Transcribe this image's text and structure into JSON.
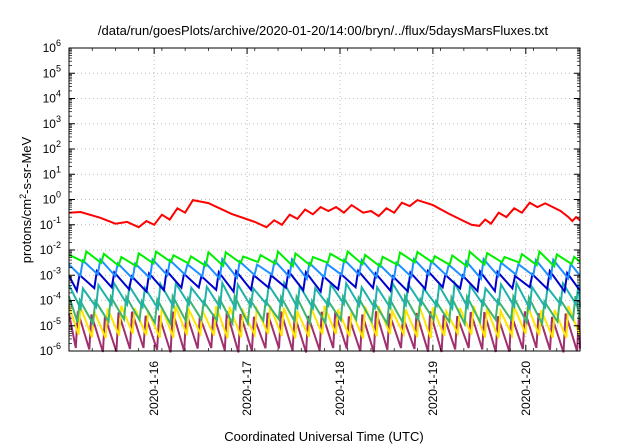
{
  "chart_data": {
    "type": "line",
    "title": "/data/run/goesPlots/archive/2020-01-20/14:00/bryn/../flux/5daysMarsFluxes.txt",
    "xlabel": "Coordinated Universal Time (UTC)",
    "ylabel": "protons/cm²-s-sr-MeV",
    "ylabel_parts": {
      "main": "protons/cm",
      "sup": "2",
      "tail": "-s-sr-MeV"
    },
    "y_scale": "log",
    "ylim": [
      1e-06,
      1000000.0
    ],
    "y_tick_exponents": [
      -6,
      -5,
      -4,
      -3,
      -2,
      -1,
      0,
      1,
      2,
      3,
      4,
      5,
      6
    ],
    "y_tick_base": "10",
    "xlim": [
      "2020-01-15 02:00",
      "2020-01-20 14:00"
    ],
    "x_ticks": [
      {
        "label": "2020-1-16",
        "date": "2020-01-16"
      },
      {
        "label": "2020-1-17",
        "date": "2020-01-17"
      },
      {
        "label": "2020-1-18",
        "date": "2020-01-18"
      },
      {
        "label": "2020-1-19",
        "date": "2020-01-19"
      },
      {
        "label": "2020-1-20",
        "date": "2020-01-20"
      }
    ],
    "grid": true,
    "legend": "none",
    "series": [
      {
        "color": "#ff0000",
        "points": [
          [
            "2020-01-15 02:00",
            0.3
          ],
          [
            "2020-01-15 05:00",
            0.32
          ],
          [
            "2020-01-15 10:00",
            0.19
          ],
          [
            "2020-01-15 14:00",
            0.11
          ],
          [
            "2020-01-15 17:00",
            0.13
          ],
          [
            "2020-01-15 20:00",
            0.08
          ],
          [
            "2020-01-15 22:00",
            0.14
          ],
          [
            "2020-01-16 00:00",
            0.1
          ],
          [
            "2020-01-16 02:00",
            0.25
          ],
          [
            "2020-01-16 04:00",
            0.16
          ],
          [
            "2020-01-16 06:00",
            0.45
          ],
          [
            "2020-01-16 08:00",
            0.3
          ],
          [
            "2020-01-16 10:00",
            0.95
          ],
          [
            "2020-01-16 14:00",
            0.72
          ],
          [
            "2020-01-16 20:00",
            0.27
          ],
          [
            "2020-01-17 02:00",
            0.13
          ],
          [
            "2020-01-17 05:00",
            0.08
          ],
          [
            "2020-01-17 07:00",
            0.15
          ],
          [
            "2020-01-17 09:00",
            0.1
          ],
          [
            "2020-01-17 11:00",
            0.25
          ],
          [
            "2020-01-17 13:00",
            0.17
          ],
          [
            "2020-01-17 15:00",
            0.4
          ],
          [
            "2020-01-17 17:00",
            0.26
          ],
          [
            "2020-01-17 19:00",
            0.5
          ],
          [
            "2020-01-17 21:00",
            0.35
          ],
          [
            "2020-01-17 23:00",
            0.5
          ],
          [
            "2020-01-18 01:00",
            0.3
          ],
          [
            "2020-01-18 03:00",
            0.6
          ],
          [
            "2020-01-18 06:00",
            0.3
          ],
          [
            "2020-01-18 08:00",
            0.35
          ],
          [
            "2020-01-18 10:00",
            0.22
          ],
          [
            "2020-01-18 12:00",
            0.45
          ],
          [
            "2020-01-18 14:00",
            0.3
          ],
          [
            "2020-01-18 16:00",
            0.75
          ],
          [
            "2020-01-18 18:00",
            0.55
          ],
          [
            "2020-01-18 20:00",
            0.95
          ],
          [
            "2020-01-19 00:00",
            0.6
          ],
          [
            "2020-01-19 04:00",
            0.28
          ],
          [
            "2020-01-19 08:00",
            0.14
          ],
          [
            "2020-01-19 10:00",
            0.1
          ],
          [
            "2020-01-19 12:00",
            0.09
          ],
          [
            "2020-01-19 13:30",
            0.16
          ],
          [
            "2020-01-19 15:00",
            0.11
          ],
          [
            "2020-01-19 17:00",
            0.3
          ],
          [
            "2020-01-19 19:00",
            0.2
          ],
          [
            "2020-01-19 21:00",
            0.45
          ],
          [
            "2020-01-19 23:00",
            0.3
          ],
          [
            "2020-01-20 01:00",
            0.75
          ],
          [
            "2020-01-20 03:00",
            0.5
          ],
          [
            "2020-01-20 05:00",
            0.7
          ],
          [
            "2020-01-20 07:00",
            0.5
          ],
          [
            "2020-01-20 09:00",
            0.35
          ],
          [
            "2020-01-20 11:00",
            0.2
          ],
          [
            "2020-01-20 12:00",
            0.14
          ],
          [
            "2020-01-20 13:00",
            0.2
          ],
          [
            "2020-01-20 14:00",
            0.15
          ]
        ]
      },
      {
        "color": "#00ee00",
        "sawtooth": {
          "high": 0.007,
          "low": 0.0028,
          "period_hours": 4.5,
          "phase": 0.0
        }
      },
      {
        "color": "#1e90ff",
        "sawtooth": {
          "high": 0.0035,
          "low": 0.0009,
          "period_hours": 4.5,
          "phase": 0.2
        }
      },
      {
        "color": "#0000cd",
        "sawtooth": {
          "high": 0.0012,
          "low": 0.00028,
          "period_hours": 4.5,
          "phase": 0.4
        }
      },
      {
        "color": "#20b2aa",
        "sawtooth": {
          "high": 0.0004,
          "low": 6e-05,
          "period_hours": 4.0,
          "phase": 0.1
        }
      },
      {
        "color": "#3cb371",
        "sawtooth": {
          "high": 0.00012,
          "low": 1.5e-05,
          "period_hours": 4.0,
          "phase": 0.3
        }
      },
      {
        "color": "#ffe600",
        "sawtooth": {
          "high": 5e-05,
          "low": 4e-06,
          "period_hours": 3.5,
          "phase": 0.15
        }
      },
      {
        "color": "#a0306e",
        "sawtooth": {
          "high": 3e-05,
          "low": 1.1e-06,
          "period_hours": 3.5,
          "phase": 0.35
        }
      }
    ]
  }
}
